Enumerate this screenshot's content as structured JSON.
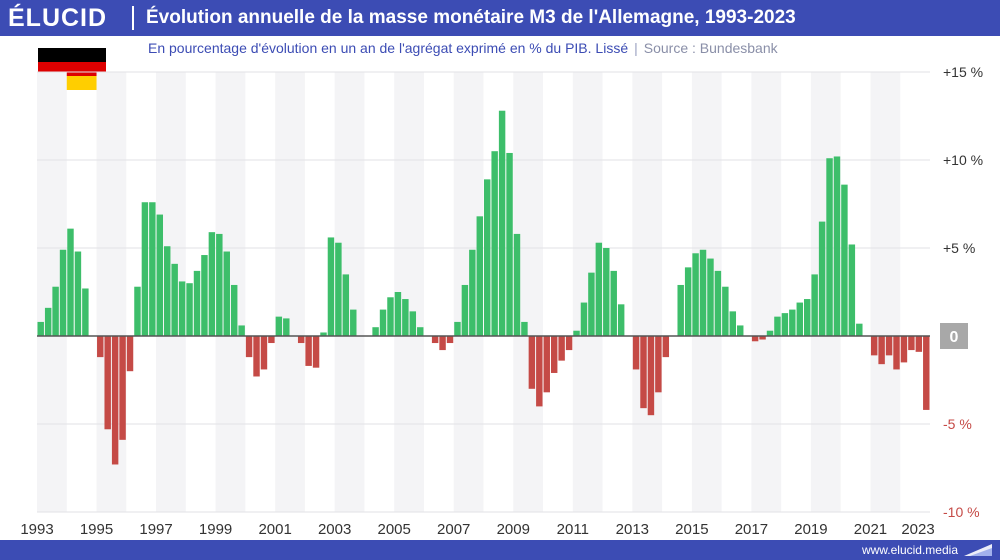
{
  "brand": {
    "logo": "ÉLUCID",
    "url": "www.elucid.media",
    "color_primary": "#3c4cb4"
  },
  "header": {
    "title": "Évolution annuelle de la masse monétaire M3 de l'Allemagne, 1993-2023"
  },
  "subtitle": {
    "text": "En pourcentage d'évolution en un an de l'agrégat exprimé en % du PIB. Lissé",
    "separator": "|",
    "source": "Source : Bundesbank"
  },
  "flag": {
    "country": "Germany",
    "colors": [
      "#000000",
      "#dd0000",
      "#ffce00"
    ]
  },
  "footer_icon": "triangle-arrow-icon",
  "chart_data": {
    "type": "bar",
    "frequency": "quarterly",
    "x_start": "1993 Q1",
    "x_end": "2023 Q4",
    "ylim": [
      -10,
      15
    ],
    "yticks": [
      {
        "value": 15,
        "label": "+15 %"
      },
      {
        "value": 10,
        "label": "+10 %"
      },
      {
        "value": 5,
        "label": "+5 %"
      },
      {
        "value": 0,
        "label": "0"
      },
      {
        "value": -5,
        "label": "-5 %"
      },
      {
        "value": -10,
        "label": "-10 %"
      }
    ],
    "xticks": [
      "1993",
      "1995",
      "1997",
      "1999",
      "2001",
      "2003",
      "2005",
      "2007",
      "2009",
      "2011",
      "2013",
      "2015",
      "2017",
      "2019",
      "2021",
      "2023"
    ],
    "positive_color": "#3dbe6a",
    "negative_color": "#c54a46",
    "grid": "horizontal",
    "alternating_year_shading": true,
    "values": [
      0.8,
      1.6,
      2.8,
      4.9,
      6.1,
      4.8,
      2.7,
      0.0,
      -1.2,
      -5.3,
      -7.3,
      -5.9,
      -2.0,
      2.8,
      7.6,
      7.6,
      6.9,
      5.1,
      4.1,
      3.1,
      3.0,
      3.7,
      4.6,
      5.9,
      5.8,
      4.8,
      2.9,
      0.6,
      -1.2,
      -2.3,
      -1.9,
      -0.4,
      1.1,
      1.0,
      0.0,
      -0.4,
      -1.7,
      -1.8,
      0.2,
      5.6,
      5.3,
      3.5,
      1.5,
      0.0,
      0.0,
      0.5,
      1.5,
      2.2,
      2.5,
      2.1,
      1.4,
      0.5,
      0.0,
      -0.4,
      -0.8,
      -0.4,
      0.8,
      2.9,
      4.9,
      6.8,
      8.9,
      10.5,
      12.8,
      10.4,
      5.8,
      0.8,
      -3.0,
      -4.0,
      -3.2,
      -2.1,
      -1.4,
      -0.8,
      0.3,
      1.9,
      3.6,
      5.3,
      5.0,
      3.7,
      1.8,
      0.0,
      -1.9,
      -4.1,
      -4.5,
      -3.2,
      -1.2,
      0.0,
      2.9,
      3.9,
      4.7,
      4.9,
      4.4,
      3.7,
      2.8,
      1.4,
      0.6,
      0.0,
      -0.3,
      -0.2,
      0.3,
      1.1,
      1.3,
      1.5,
      1.9,
      2.1,
      3.5,
      6.5,
      10.1,
      10.2,
      8.6,
      5.2,
      0.7,
      0.0,
      -1.1,
      -1.6,
      -1.1,
      -1.9,
      -1.5,
      -0.8,
      -0.9,
      -4.2
    ]
  }
}
